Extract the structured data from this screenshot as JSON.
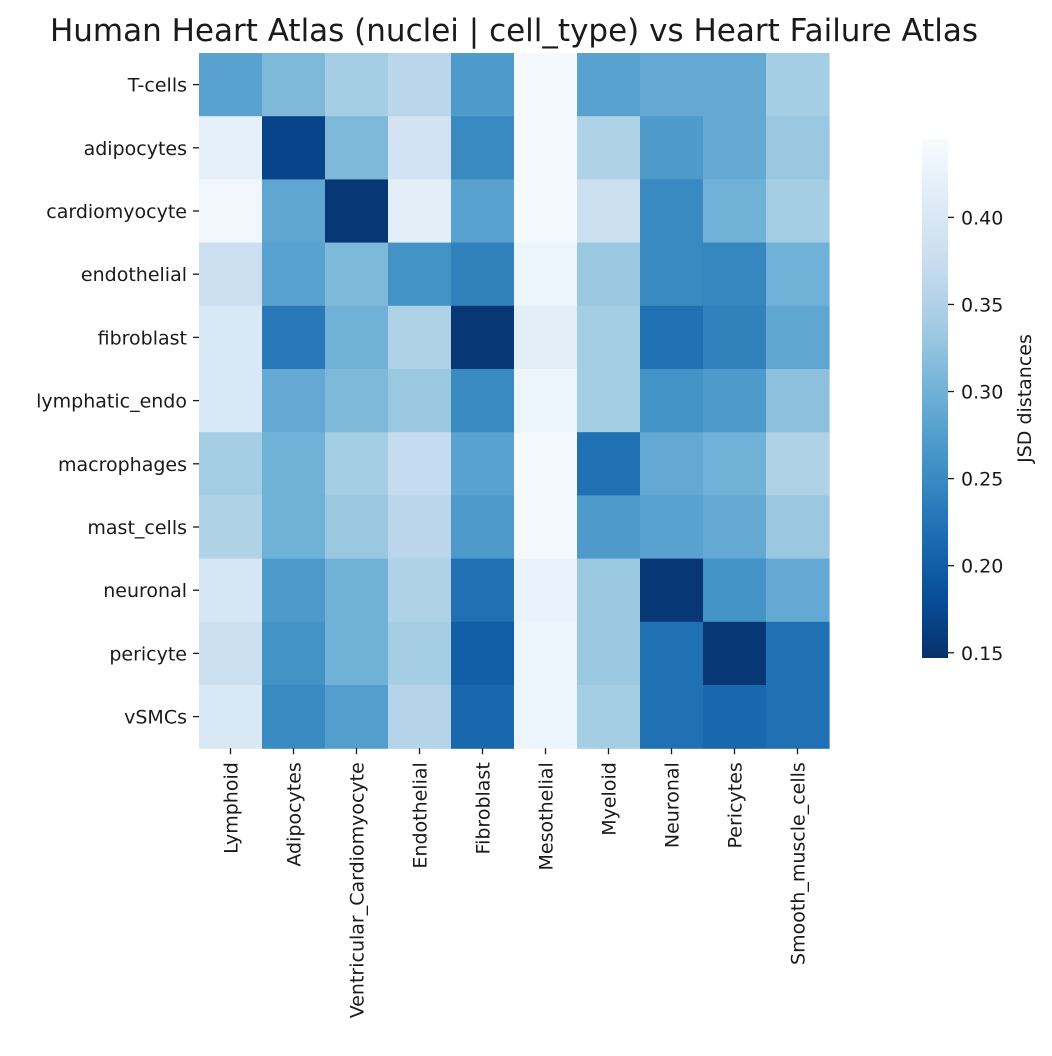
{
  "chart_data": {
    "type": "heatmap",
    "title": "Human Heart Atlas (nuclei | cell_type) vs Heart Failure Atlas",
    "xlabel": "",
    "ylabel": "",
    "row_labels": [
      "T-cells",
      "adipocytes",
      "cardiomyocyte",
      "endothelial",
      "fibroblast",
      "lymphatic_endo",
      "macrophages",
      "mast_cells",
      "neuronal",
      "pericyte",
      "vSMCs"
    ],
    "col_labels": [
      "Lymphoid",
      "Adipocytes",
      "Ventricular_Cardiomyocyte",
      "Endothelial",
      "Fibroblast",
      "Mesothelial",
      "Myeloid",
      "Neuronal",
      "Pericytes",
      "Smooth_muscle_cells"
    ],
    "values": [
      [
        0.28,
        0.31,
        0.34,
        0.36,
        0.27,
        0.44,
        0.28,
        0.29,
        0.29,
        0.34
      ],
      [
        0.42,
        0.17,
        0.31,
        0.39,
        0.25,
        0.44,
        0.35,
        0.27,
        0.29,
        0.33
      ],
      [
        0.435,
        0.285,
        0.155,
        0.415,
        0.28,
        0.44,
        0.38,
        0.25,
        0.3,
        0.34
      ],
      [
        0.38,
        0.28,
        0.31,
        0.26,
        0.24,
        0.43,
        0.33,
        0.25,
        0.245,
        0.3
      ],
      [
        0.4,
        0.23,
        0.3,
        0.35,
        0.155,
        0.415,
        0.34,
        0.22,
        0.24,
        0.285
      ],
      [
        0.4,
        0.29,
        0.31,
        0.33,
        0.25,
        0.43,
        0.34,
        0.26,
        0.27,
        0.32
      ],
      [
        0.34,
        0.3,
        0.34,
        0.37,
        0.28,
        0.44,
        0.22,
        0.29,
        0.3,
        0.35
      ],
      [
        0.35,
        0.3,
        0.33,
        0.36,
        0.27,
        0.44,
        0.27,
        0.28,
        0.29,
        0.33
      ],
      [
        0.395,
        0.27,
        0.3,
        0.35,
        0.22,
        0.425,
        0.33,
        0.155,
        0.26,
        0.29
      ],
      [
        0.38,
        0.26,
        0.3,
        0.34,
        0.2,
        0.43,
        0.33,
        0.22,
        0.155,
        0.22
      ],
      [
        0.4,
        0.25,
        0.275,
        0.355,
        0.21,
        0.43,
        0.34,
        0.22,
        0.21,
        0.22
      ]
    ],
    "colorscale": "Blues_r",
    "colormap_stops": [
      "#f7fbff",
      "#deebf7",
      "#c6dbef",
      "#9ecae1",
      "#6baed6",
      "#4292c6",
      "#2171b5",
      "#08519c",
      "#08306b"
    ],
    "vmin": 0.147,
    "vmax": 0.445,
    "colorbar": {
      "label": "JSD distances",
      "ticks": [
        0.15,
        0.2,
        0.25,
        0.3,
        0.35,
        0.4
      ],
      "tick_labels": [
        "0.15",
        "0.20",
        "0.25",
        "0.30",
        "0.35",
        "0.40"
      ]
    },
    "grid": false
  }
}
